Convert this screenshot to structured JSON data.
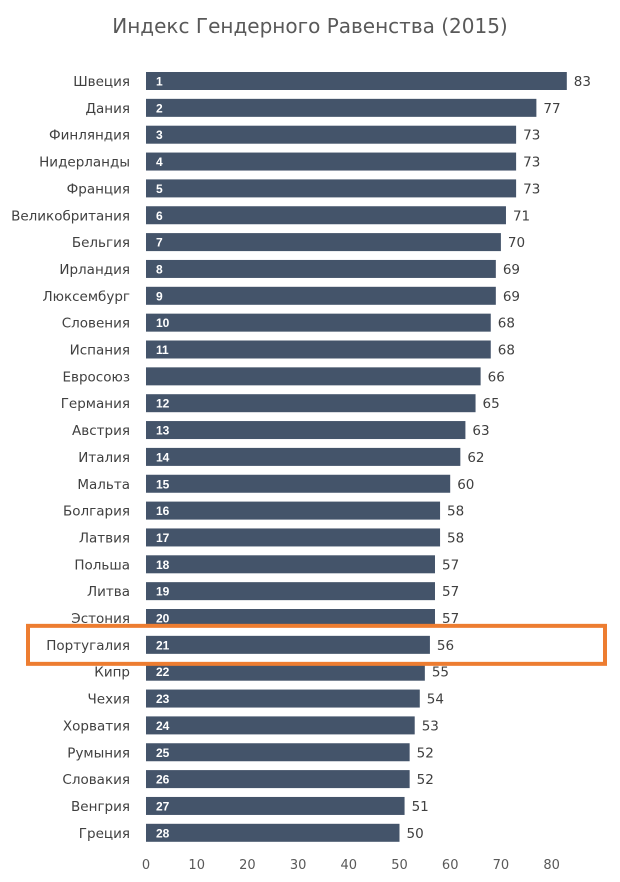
{
  "chart_data": {
    "type": "bar",
    "orientation": "horizontal",
    "title": "Индекс Гендерного Равенства (2015)",
    "xlabel": "",
    "ylabel": "",
    "xlim": [
      0,
      90
    ],
    "x_ticks": [
      0,
      10,
      20,
      30,
      40,
      50,
      60,
      70,
      80
    ],
    "categories": [
      "Швеция",
      "Дания",
      "Финляндия",
      "Нидерланды",
      "Франция",
      "Великобритания",
      "Бельгия",
      "Ирландия",
      "Люксембург",
      "Словения",
      "Испания",
      "Евросоюз",
      "Германия",
      "Австрия",
      "Италия",
      "Мальта",
      "Болгария",
      "Латвия",
      "Польша",
      "Литва",
      "Эстония",
      "Португалия",
      "Кипр",
      "Чехия",
      "Хорватия",
      "Румыния",
      "Словакия",
      "Венгрия",
      "Греция"
    ],
    "ranks": [
      "1",
      "2",
      "3",
      "4",
      "5",
      "6",
      "7",
      "8",
      "9",
      "10",
      "11",
      "",
      "12",
      "13",
      "14",
      "15",
      "16",
      "17",
      "18",
      "19",
      "20",
      "21",
      "22",
      "23",
      "24",
      "25",
      "26",
      "27",
      "28"
    ],
    "values": [
      83,
      77,
      73,
      73,
      73,
      71,
      70,
      69,
      69,
      68,
      68,
      66,
      65,
      63,
      62,
      60,
      58,
      58,
      57,
      57,
      57,
      56,
      55,
      54,
      53,
      52,
      52,
      51,
      50
    ],
    "highlight": "Португалия",
    "bar_color": "#44546a",
    "highlight_color": "#ed7d31"
  }
}
